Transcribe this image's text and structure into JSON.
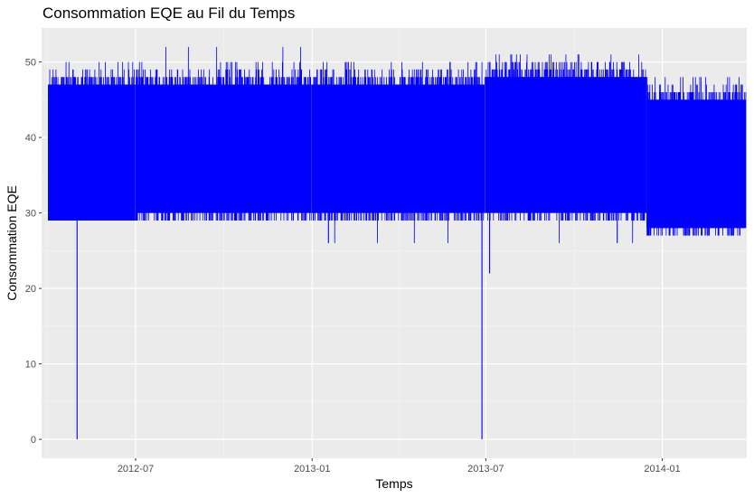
{
  "chart_data": {
    "type": "line",
    "title": "Consommation EQE au Fil du Temps",
    "xlabel": "Temps",
    "ylabel": "Consommation EQE",
    "x_range": [
      "2012-03-25",
      "2014-03-30"
    ],
    "ylim": [
      -2.5,
      54.5
    ],
    "x_ticks": [
      "2012-07",
      "2013-01",
      "2013-07",
      "2014-01"
    ],
    "y_ticks": [
      0,
      10,
      20,
      30,
      40,
      50
    ],
    "grid": true,
    "legend": "none",
    "series": [
      {
        "color": "#0000ff",
        "segments": [
          {
            "start": "2012-04-01",
            "end": "2012-06-30",
            "low": 29,
            "high": 47,
            "peak": 48,
            "trough": 29
          },
          {
            "start": "2012-07-01",
            "end": "2012-12-31",
            "low": 30,
            "high": 47,
            "peak": 52,
            "trough": 29
          },
          {
            "start": "2013-01-01",
            "end": "2013-06-30",
            "low": 30,
            "high": 47,
            "peak": 50,
            "trough": 26
          },
          {
            "start": "2013-07-01",
            "end": "2013-12-15",
            "low": 30,
            "high": 48,
            "peak": 51,
            "trough": 26
          },
          {
            "start": "2013-12-16",
            "end": "2014-03-29",
            "low": 28,
            "high": 45,
            "peak": 48,
            "trough": 27
          }
        ],
        "outliers": [
          {
            "date": "2012-05-01",
            "value": 0
          },
          {
            "date": "2013-06-27",
            "value": 0
          },
          {
            "date": "2013-07-05",
            "value": 22
          },
          {
            "date": "2013-01-18",
            "value": 26
          },
          {
            "date": "2013-11-15",
            "value": 26
          }
        ]
      }
    ]
  }
}
